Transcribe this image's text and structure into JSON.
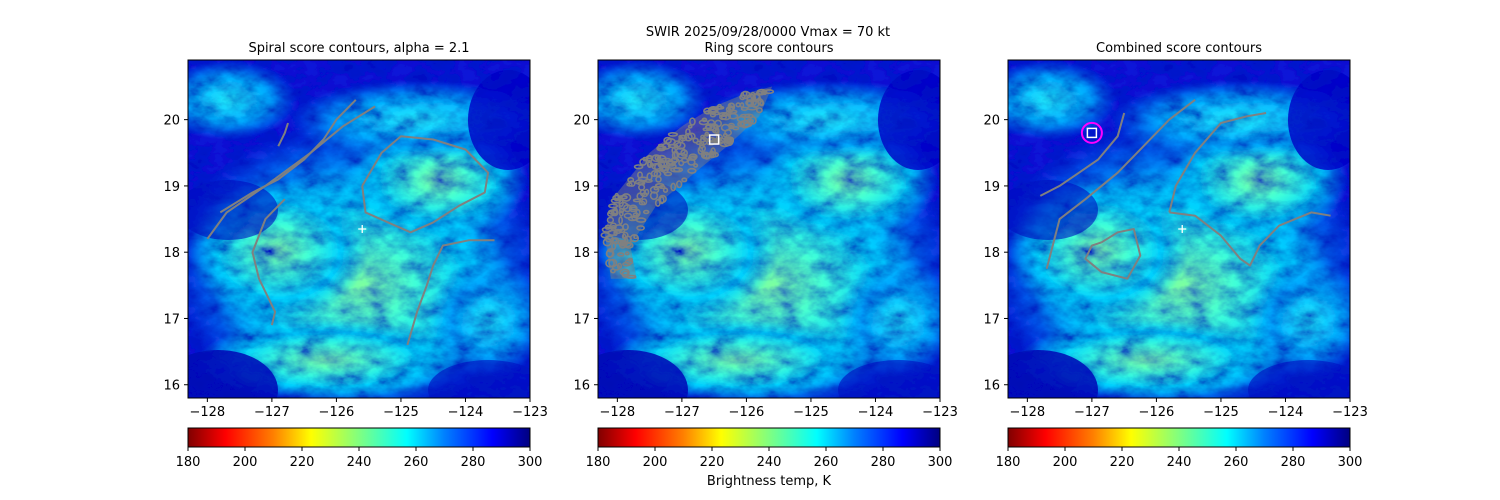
{
  "figure": {
    "suptitle_line1": "SWIR  2025/09/28/0000    Vmax = 70 kt",
    "colorbar_label": "Brightness temp, K"
  },
  "chart_data": [
    {
      "type": "heatmap",
      "title": "Spiral score contours, alpha =  2.1",
      "xlim": [
        -128.3,
        -123.0
      ],
      "ylim": [
        15.8,
        20.9
      ],
      "xticks": [
        -128,
        -127,
        -126,
        -125,
        -124,
        -123
      ],
      "yticks": [
        16,
        17,
        18,
        19,
        20
      ],
      "colormap": "jet_r",
      "clim": [
        180,
        300
      ],
      "cbar_ticks": [
        180,
        200,
        220,
        240,
        260,
        280,
        300
      ],
      "center_marker": {
        "x": -125.6,
        "y": 18.35,
        "symbol": "+",
        "color": "#ffffff"
      },
      "contour_color": "#808080",
      "contours": [
        [
          [
            -126.9,
            19.6
          ],
          [
            -126.8,
            19.8
          ],
          [
            -126.75,
            19.95
          ]
        ],
        [
          [
            -127.8,
            18.6
          ],
          [
            -127.3,
            18.9
          ],
          [
            -126.9,
            19.1
          ],
          [
            -126.5,
            19.4
          ],
          [
            -126.2,
            19.7
          ],
          [
            -126.0,
            20.0
          ],
          [
            -125.8,
            20.2
          ],
          [
            -125.7,
            20.3
          ]
        ],
        [
          [
            -128.0,
            18.2
          ],
          [
            -127.7,
            18.6
          ],
          [
            -127.1,
            19.0
          ],
          [
            -126.4,
            19.5
          ],
          [
            -125.9,
            19.9
          ],
          [
            -125.4,
            20.2
          ]
        ],
        [
          [
            -125.6,
            19.0
          ],
          [
            -125.3,
            19.5
          ],
          [
            -125.0,
            19.75
          ],
          [
            -124.5,
            19.7
          ],
          [
            -124.0,
            19.55
          ],
          [
            -123.65,
            19.2
          ],
          [
            -123.7,
            18.9
          ],
          [
            -124.1,
            18.7
          ],
          [
            -124.5,
            18.45
          ],
          [
            -124.85,
            18.3
          ],
          [
            -125.2,
            18.45
          ],
          [
            -125.55,
            18.6
          ],
          [
            -125.6,
            19.0
          ]
        ],
        [
          [
            -124.9,
            16.6
          ],
          [
            -124.75,
            17.1
          ],
          [
            -124.6,
            17.5
          ],
          [
            -124.5,
            17.8
          ],
          [
            -124.35,
            18.1
          ],
          [
            -123.95,
            18.18
          ],
          [
            -123.55,
            18.18
          ]
        ],
        [
          [
            -127.0,
            16.9
          ],
          [
            -126.95,
            17.1
          ],
          [
            -127.2,
            17.6
          ],
          [
            -127.3,
            18.0
          ],
          [
            -127.1,
            18.5
          ],
          [
            -126.8,
            18.8
          ]
        ]
      ]
    },
    {
      "type": "heatmap",
      "title": "Ring score contours",
      "xlim": [
        -128.3,
        -123.0
      ],
      "ylim": [
        15.8,
        20.9
      ],
      "xticks": [
        -128,
        -127,
        -126,
        -125,
        -124,
        -123
      ],
      "yticks": [
        16,
        17,
        18,
        19,
        20
      ],
      "colormap": "jet_r",
      "clim": [
        180,
        300
      ],
      "cbar_ticks": [
        180,
        200,
        220,
        240,
        260,
        280,
        300
      ],
      "max_marker": {
        "x": -126.5,
        "y": 19.7,
        "symbol": "square",
        "color": "#ffffff"
      },
      "contour_color": "#808080",
      "contour_region": [
        [
          -128.1,
          17.6
        ],
        [
          -128.2,
          18.3
        ],
        [
          -128.0,
          18.9
        ],
        [
          -127.5,
          19.5
        ],
        [
          -127.0,
          19.9
        ],
        [
          -126.5,
          20.2
        ],
        [
          -126.0,
          20.4
        ],
        [
          -125.6,
          20.5
        ],
        [
          -125.8,
          20.05
        ],
        [
          -126.3,
          19.6
        ],
        [
          -126.8,
          19.2
        ],
        [
          -127.4,
          18.7
        ],
        [
          -127.8,
          18.1
        ],
        [
          -127.7,
          17.6
        ]
      ]
    },
    {
      "type": "heatmap",
      "title": "Combined score contours",
      "xlim": [
        -128.3,
        -123.0
      ],
      "ylim": [
        15.8,
        20.9
      ],
      "xticks": [
        -128,
        -127,
        -126,
        -125,
        -124,
        -123
      ],
      "yticks": [
        16,
        17,
        18,
        19,
        20
      ],
      "colormap": "jet_r",
      "clim": [
        180,
        300
      ],
      "cbar_ticks": [
        180,
        200,
        220,
        240,
        260,
        280,
        300
      ],
      "center_marker": {
        "x": -125.6,
        "y": 18.35,
        "symbol": "+",
        "color": "#ffffff"
      },
      "max_marker": {
        "x": -127.0,
        "y": 19.8,
        "symbol": "square",
        "color": "#ffffff"
      },
      "ring_marker": {
        "x": -127.0,
        "y": 19.8,
        "color": "#ff00ff"
      },
      "contour_color": "#808080",
      "contours": [
        [
          [
            -127.8,
            18.85
          ],
          [
            -127.5,
            19.0
          ],
          [
            -127.2,
            19.2
          ],
          [
            -126.9,
            19.4
          ],
          [
            -126.6,
            19.75
          ],
          [
            -126.5,
            20.1
          ]
        ],
        [
          [
            -127.7,
            17.75
          ],
          [
            -127.5,
            18.5
          ],
          [
            -127.1,
            18.8
          ],
          [
            -126.6,
            19.2
          ],
          [
            -126.2,
            19.6
          ],
          [
            -125.8,
            20.0
          ],
          [
            -125.4,
            20.3
          ]
        ],
        [
          [
            -125.8,
            18.6
          ],
          [
            -125.7,
            19.0
          ],
          [
            -125.4,
            19.5
          ],
          [
            -125.0,
            19.95
          ],
          [
            -124.6,
            20.05
          ],
          [
            -124.3,
            20.1
          ]
        ],
        [
          [
            -125.8,
            18.6
          ],
          [
            -125.4,
            18.55
          ],
          [
            -125.0,
            18.25
          ],
          [
            -124.7,
            17.9
          ],
          [
            -124.55,
            17.8
          ],
          [
            -124.4,
            18.1
          ],
          [
            -124.1,
            18.4
          ],
          [
            -123.6,
            18.6
          ],
          [
            -123.3,
            18.55
          ]
        ],
        [
          [
            -126.85,
            18.15
          ],
          [
            -126.6,
            18.3
          ],
          [
            -126.35,
            18.35
          ],
          [
            -126.25,
            17.95
          ],
          [
            -126.45,
            17.6
          ],
          [
            -126.85,
            17.7
          ],
          [
            -127.1,
            17.9
          ],
          [
            -127.0,
            18.1
          ],
          [
            -126.85,
            18.15
          ]
        ]
      ]
    }
  ]
}
